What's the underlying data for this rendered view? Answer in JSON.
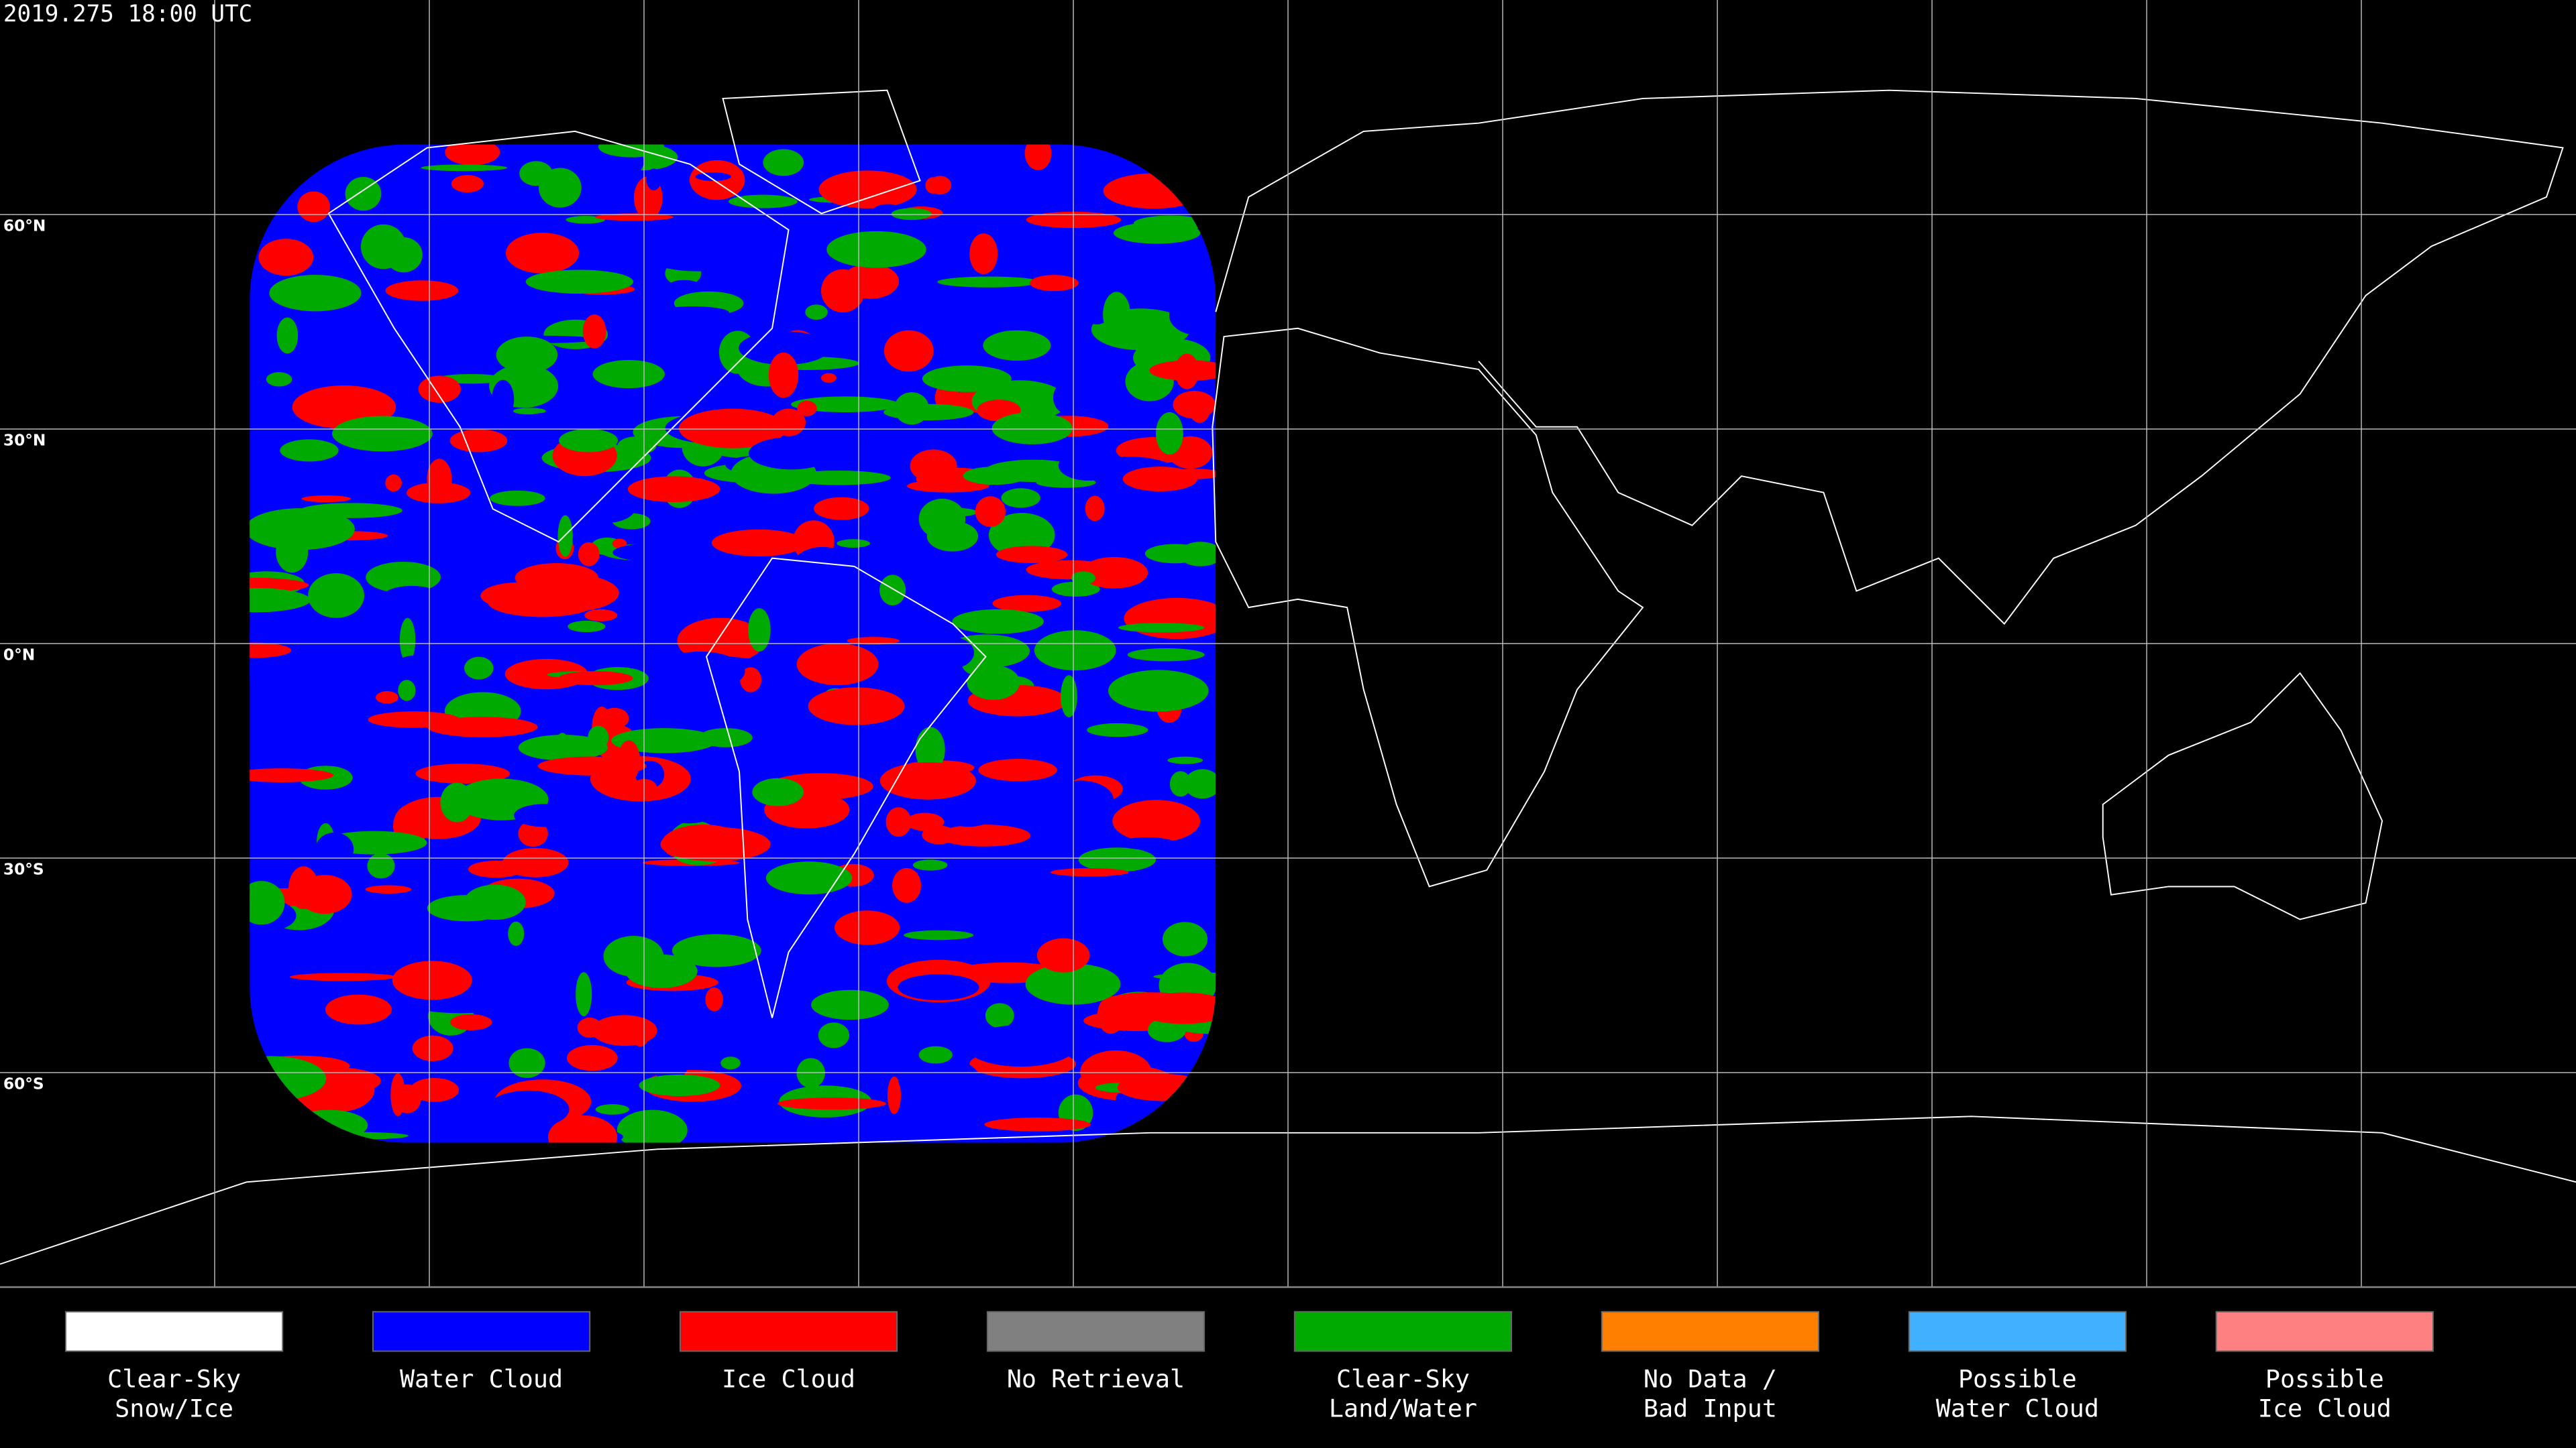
{
  "timestamp": "2019.275 18:00 UTC",
  "latitude_labels": [
    "60°N",
    "30°N",
    "0°N",
    "30°S",
    "60°S"
  ],
  "legend": [
    {
      "lines": [
        "Clear-Sky",
        "Snow/Ice"
      ],
      "color": "#ffffff"
    },
    {
      "lines": [
        "Water Cloud"
      ],
      "color": "#0000ff"
    },
    {
      "lines": [
        "Ice Cloud"
      ],
      "color": "#ff0000"
    },
    {
      "lines": [
        "No Retrieval"
      ],
      "color": "#808080"
    },
    {
      "lines": [
        "Clear-Sky",
        "Land/Water"
      ],
      "color": "#00aa00"
    },
    {
      "lines": [
        "No Data /",
        "Bad Input"
      ],
      "color": "#ff8000"
    },
    {
      "lines": [
        "Possible",
        "Water Cloud"
      ],
      "color": "#40b0ff"
    },
    {
      "lines": [
        "Possible",
        "Ice Cloud"
      ],
      "color": "#ff8080"
    }
  ]
}
